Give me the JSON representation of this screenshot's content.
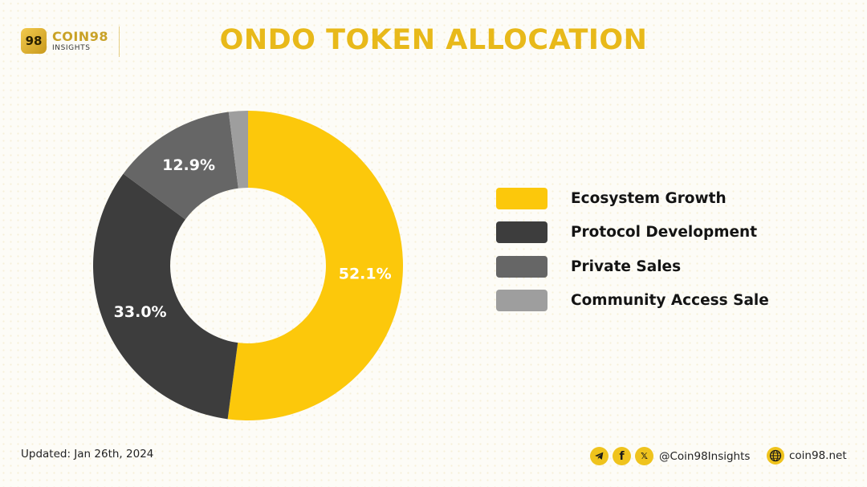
{
  "brand": {
    "mark": "98",
    "name": "COIN98",
    "sub": "INSIGHTS"
  },
  "title": "ONDO TOKEN ALLOCATION",
  "chart_data": {
    "type": "pie",
    "donut": true,
    "title": "ONDO TOKEN ALLOCATION",
    "categories": [
      "Ecosystem Growth",
      "Protocol Development",
      "Private Sales",
      "Community Access Sale"
    ],
    "values": [
      52.1,
      33.0,
      12.9,
      2.0
    ],
    "labels": [
      "52.1%",
      "33.0%",
      "12.9%",
      ""
    ],
    "colors": [
      "#fcc80b",
      "#3d3d3d",
      "#666666",
      "#9e9e9e"
    ],
    "legend_position": "right"
  },
  "footer": {
    "updated": "Updated: Jan 26th, 2024",
    "social_icons": [
      "telegram-icon",
      "facebook-icon",
      "x-icon"
    ],
    "handle": "@Coin98Insights",
    "website": "coin98.net"
  }
}
